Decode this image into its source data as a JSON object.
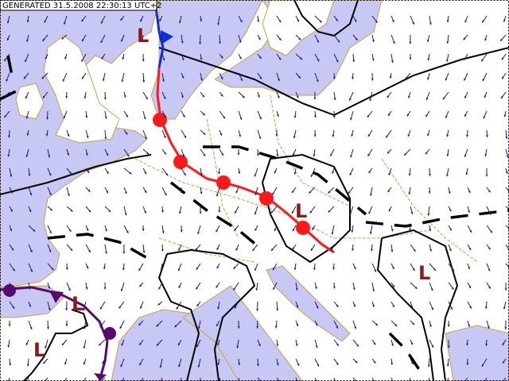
{
  "header": {
    "generated": "GENERATED 31.5.2008 22:30:13 UTC+2"
  },
  "pressure_labels": [
    "L",
    "L",
    "L",
    "L",
    "L"
  ]
}
